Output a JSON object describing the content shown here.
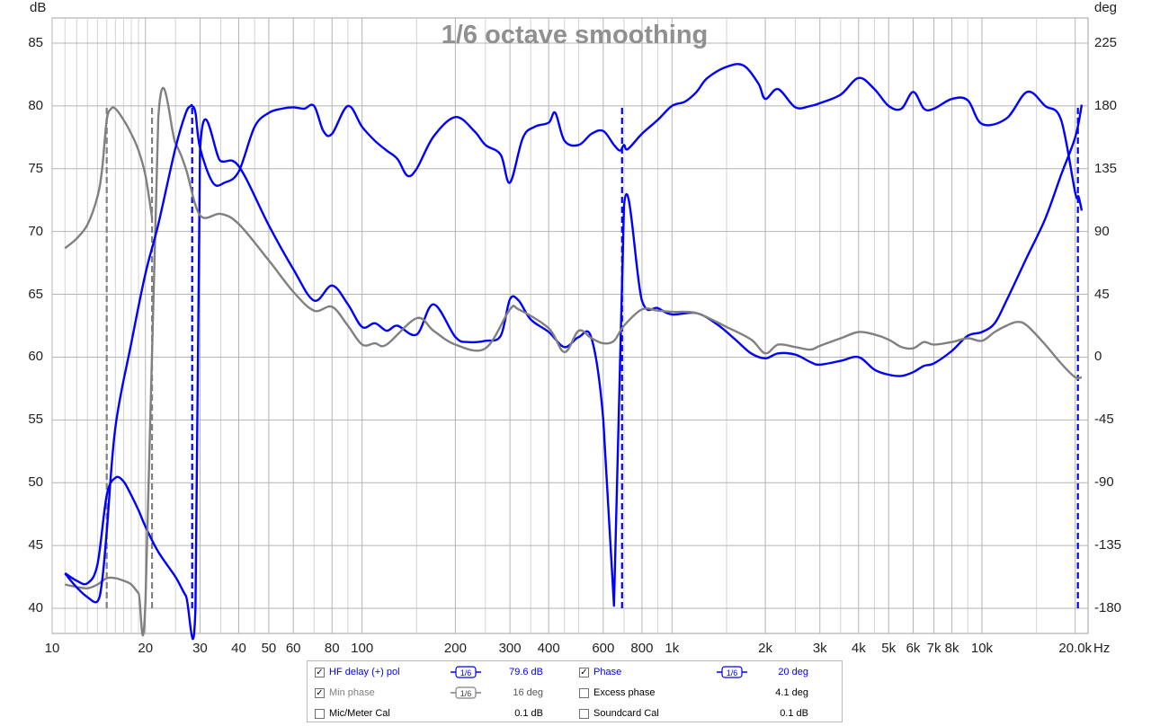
{
  "chart_data": {
    "type": "line",
    "title": "1/6 octave smoothing",
    "xlabel": "Hz",
    "ylabel": "dB",
    "y2label": "deg",
    "x_scale": "log",
    "xlim": [
      10,
      22000
    ],
    "ylim": [
      38,
      87
    ],
    "y2lim": [
      -198,
      243
    ],
    "x_ticks": [
      10,
      20,
      30,
      40,
      50,
      60,
      80,
      100,
      200,
      300,
      400,
      600,
      800,
      1000,
      2000,
      3000,
      4000,
      5000,
      6000,
      7000,
      8000,
      10000,
      20000
    ],
    "x_tick_labels": [
      "10",
      "20",
      "30",
      "40",
      "50",
      "60",
      "80",
      "100",
      "200",
      "300",
      "400",
      "600",
      "800",
      "1k",
      "2k",
      "3k",
      "4k",
      "5k",
      "6k",
      "7k",
      "8k",
      "10k",
      "20.0k"
    ],
    "x_minor_ticks": [
      11,
      12,
      13,
      14,
      15,
      16,
      17,
      18,
      19,
      25,
      35,
      45,
      70,
      90,
      150,
      250,
      350,
      450,
      500,
      700,
      900,
      1500,
      2500,
      3500,
      4500,
      9000,
      15000
    ],
    "y_ticks": [
      40,
      45,
      50,
      55,
      60,
      65,
      70,
      75,
      80,
      85
    ],
    "y2_ticks": [
      -180,
      -135,
      -90,
      -45,
      0,
      45,
      90,
      135,
      180,
      225
    ],
    "grid": true,
    "series": [
      {
        "name": "HF delay (+) pol",
        "axis": "left",
        "color": "#0000ff",
        "x": [
          11,
          12,
          13,
          14,
          15,
          16,
          17,
          18,
          19,
          20,
          22,
          25,
          27,
          29,
          30,
          35,
          40,
          50,
          60,
          70,
          80,
          90,
          100,
          110,
          120,
          130,
          150,
          170,
          200,
          220,
          250,
          280,
          300,
          320,
          350,
          400,
          450,
          500,
          550,
          600,
          650,
          700,
          800,
          900,
          1000,
          1200,
          1400,
          1600,
          1800,
          2000,
          2200,
          2500,
          2800,
          3000,
          3500,
          4000,
          4500,
          5000,
          5500,
          6000,
          6500,
          7000,
          8000,
          9000,
          10000,
          11000,
          12000,
          14000,
          16000,
          18000,
          20000,
          21000
        ],
        "y": [
          42.8,
          42.2,
          42.0,
          43.5,
          49.0,
          50.4,
          50.1,
          49.0,
          47.8,
          46.5,
          44.5,
          42.5,
          41.0,
          40.1,
          76.4,
          75.6,
          75.2,
          70.5,
          67.0,
          64.5,
          65.7,
          64.2,
          62.4,
          62.7,
          62.1,
          62.5,
          61.8,
          64.2,
          61.6,
          61.2,
          61.3,
          61.7,
          64.6,
          64.5,
          63.0,
          62.0,
          60.8,
          61.6,
          61.5,
          55.0,
          40.2,
          72.0,
          64.5,
          63.9,
          63.4,
          63.5,
          62.6,
          61.4,
          60.3,
          59.9,
          60.3,
          60.2,
          59.6,
          59.4,
          59.7,
          60.0,
          59.0,
          58.6,
          58.5,
          58.8,
          59.3,
          59.5,
          60.5,
          61.7,
          62.0,
          62.7,
          64.5,
          68.0,
          71.0,
          74.5,
          77.5,
          80.1
        ]
      },
      {
        "name": "Min phase",
        "axis": "left",
        "color": "#808080",
        "x": [
          11,
          12,
          13,
          14,
          15,
          16,
          17,
          18,
          19,
          20,
          22,
          25,
          27,
          30,
          35,
          40,
          50,
          60,
          70,
          80,
          90,
          100,
          110,
          120,
          150,
          170,
          200,
          250,
          300,
          320,
          400,
          450,
          500,
          550,
          600,
          650,
          700,
          800,
          900,
          1000,
          1200,
          1500,
          1800,
          2000,
          2200,
          2500,
          2800,
          3000,
          3500,
          4000,
          4500,
          5000,
          5500,
          6000,
          6500,
          7000,
          8000,
          9000,
          10000,
          11000,
          12000,
          13000,
          14000,
          16000,
          18000,
          20000,
          21000
        ],
        "y": [
          41.9,
          41.7,
          41.6,
          41.9,
          42.4,
          42.4,
          42.2,
          41.9,
          41.2,
          40.6,
          79.0,
          77.0,
          75.0,
          71.3,
          71.4,
          70.6,
          67.7,
          65.2,
          63.7,
          64.0,
          62.5,
          61.0,
          61.1,
          61.0,
          63.1,
          62.1,
          61.0,
          60.7,
          63.8,
          63.8,
          62.3,
          60.4,
          62.1,
          61.5,
          61.1,
          61.3,
          62.5,
          63.8,
          63.7,
          63.6,
          63.5,
          62.4,
          61.4,
          60.3,
          61.0,
          60.8,
          60.6,
          60.9,
          61.5,
          62.0,
          61.8,
          61.4,
          60.8,
          60.7,
          61.2,
          61.0,
          61.2,
          61.5,
          61.3,
          62.0,
          62.5,
          62.8,
          62.5,
          61.0,
          59.5,
          58.4,
          58.4
        ]
      },
      {
        "name": "Phase",
        "axis": "right",
        "color": "#0000ff",
        "x": [
          11,
          12,
          13,
          14,
          14.5,
          15,
          16,
          18,
          20,
          22,
          25,
          27,
          28,
          28.3,
          29,
          30,
          33,
          36,
          40,
          45,
          50,
          55,
          60,
          65,
          70,
          75,
          80,
          90,
          100,
          110,
          120,
          130,
          140,
          150,
          170,
          200,
          230,
          250,
          280,
          300,
          330,
          360,
          400,
          420,
          450,
          500,
          550,
          600,
          650,
          680,
          700,
          720,
          800,
          900,
          1000,
          1100,
          1200,
          1300,
          1500,
          1700,
          1900,
          2000,
          2200,
          2500,
          2800,
          3000,
          3500,
          4000,
          4500,
          5000,
          5500,
          6000,
          6500,
          7000,
          8000,
          9000,
          10000,
          12000,
          14000,
          16000,
          18000,
          20000,
          20500,
          21000
        ],
        "y": [
          -155,
          -165,
          -172,
          -175,
          -160,
          -125,
          -50,
          10,
          60,
          95,
          150,
          175,
          180,
          180,
          175,
          150,
          125,
          125,
          133,
          165,
          175,
          178,
          179,
          178,
          180,
          162,
          160,
          180,
          165,
          155,
          148,
          142,
          130,
          135,
          158,
          172,
          162,
          152,
          145,
          125,
          157,
          165,
          168,
          175,
          155,
          152,
          160,
          162,
          152,
          148,
          152,
          149,
          160,
          170,
          180,
          183,
          190,
          200,
          208,
          209,
          196,
          185,
          192,
          179,
          180,
          182,
          188,
          200,
          192,
          180,
          178,
          190,
          178,
          178,
          185,
          184,
          167,
          171,
          190,
          180,
          170,
          118,
          115,
          105
        ]
      },
      {
        "name": "Excess phase",
        "axis": "right",
        "color": "#808080",
        "x": [
          11,
          12,
          13,
          14,
          14.5,
          15,
          15.5,
          16,
          17,
          18,
          19,
          20,
          21
        ],
        "y": [
          78,
          85,
          95,
          115,
          135,
          170,
          178,
          178,
          170,
          160,
          148,
          130,
          100
        ]
      }
    ],
    "vertical_dashed_x": [
      {
        "x": 15,
        "color": "#808080",
        "from": 40,
        "to": 80
      },
      {
        "x": 21,
        "color": "#808080",
        "from": 40,
        "to": 80
      },
      {
        "x": 28.3,
        "color": "#0000ff",
        "from": 40,
        "to": 80
      },
      {
        "x": 690,
        "color": "#0000ff",
        "from": 40,
        "to": 80
      },
      {
        "x": 20400,
        "color": "#0000ff",
        "from": 40,
        "to": 80
      }
    ]
  },
  "legend": {
    "rows": [
      {
        "label": "HF delay (+) pol",
        "checked": true,
        "color": "#0000ff",
        "smoothing": "1/6",
        "value": "79.6 dB"
      },
      {
        "label": "Phase",
        "checked": true,
        "color": "#0000ff",
        "smoothing": "1/6",
        "value": "20 deg"
      },
      {
        "label": "Min phase",
        "checked": true,
        "color": "#808080",
        "smoothing": "1/6",
        "value": "16 deg"
      },
      {
        "label": "Excess phase",
        "checked": false,
        "color": "#000000",
        "smoothing": "",
        "value": "4.1 deg"
      },
      {
        "label": "Mic/Meter Cal",
        "checked": false,
        "color": "#000000",
        "smoothing": "",
        "value": "0.1 dB"
      },
      {
        "label": "Soundcard Cal",
        "checked": false,
        "color": "#000000",
        "smoothing": "",
        "value": "0.1 dB"
      }
    ]
  }
}
